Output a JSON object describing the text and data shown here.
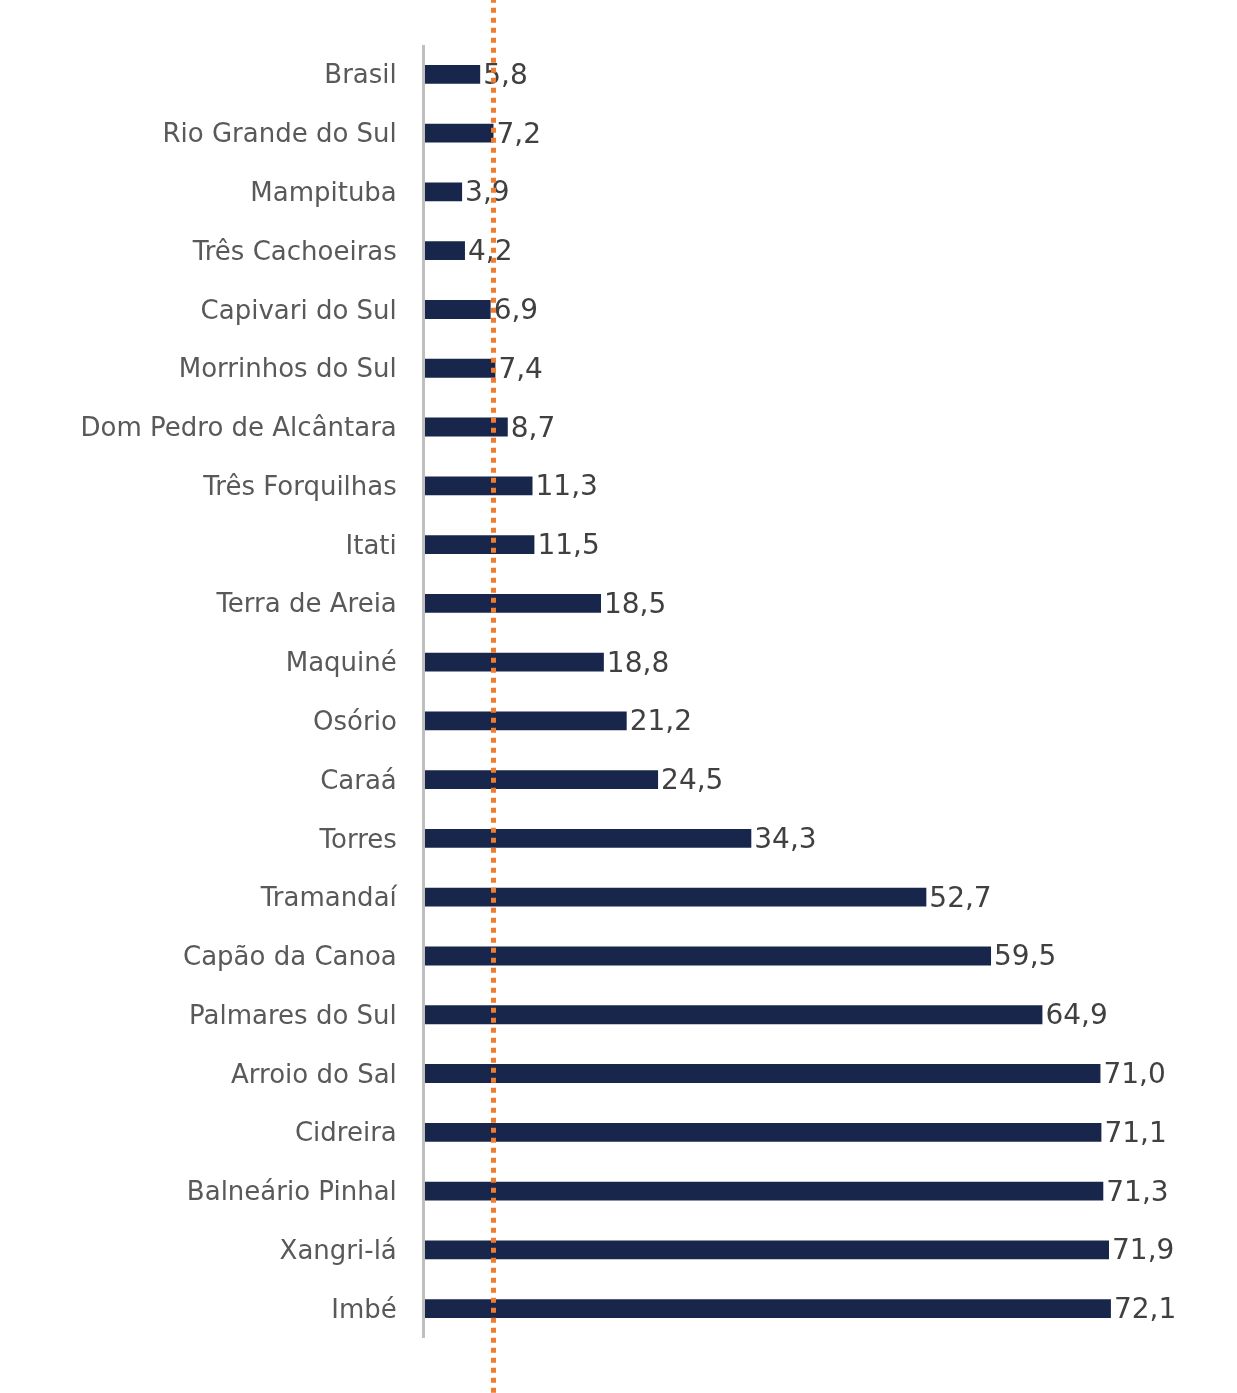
{
  "chart_data": {
    "type": "bar",
    "orientation": "horizontal",
    "categories": [
      "Brasil",
      "Rio Grande do Sul",
      "Mampituba",
      "Três Cachoeiras",
      "Capivari do Sul",
      "Morrinhos do Sul",
      "Dom Pedro de Alcântara",
      "Três Forquilhas",
      "Itati",
      "Terra de Areia",
      "Maquiné",
      "Osório",
      "Caraá",
      "Torres",
      "Tramandaí",
      "Capão da Canoa",
      "Palmares do Sul",
      "Arroio do Sal",
      "Cidreira",
      "Balneário Pinhal",
      "Xangri-lá",
      "Imbé"
    ],
    "values": [
      5.8,
      7.2,
      3.9,
      4.2,
      6.9,
      7.4,
      8.7,
      11.3,
      11.5,
      18.5,
      18.8,
      21.2,
      24.5,
      34.3,
      52.7,
      59.5,
      64.9,
      71.0,
      71.1,
      71.3,
      71.9,
      72.1
    ],
    "value_labels": [
      "5,8",
      "7,2",
      "3,9",
      "4,2",
      "6,9",
      "7,4",
      "8,7",
      "11,3",
      "11,5",
      "18,5",
      "18,8",
      "21,2",
      "24,5",
      "34,3",
      "52,7",
      "59,5",
      "64,9",
      "71,0",
      "71,1",
      "71,3",
      "71,9",
      "72,1"
    ],
    "color": "#17264a",
    "ref_lines": [
      {
        "axis": "x",
        "value": 7.2,
        "color": "#ed7d31",
        "line_style": "dotted"
      }
    ]
  }
}
